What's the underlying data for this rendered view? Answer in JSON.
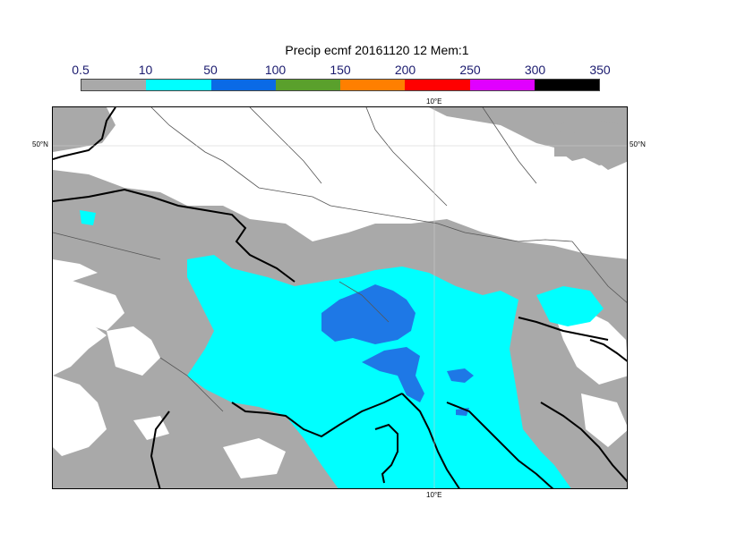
{
  "title": "Precip ecmf 20161120 12 Mem:1",
  "legend": {
    "ticks": [
      "0.5",
      "10",
      "50",
      "100",
      "150",
      "200",
      "250",
      "300",
      "350"
    ],
    "colors": [
      "#a9a9a9",
      "#00ffff",
      "#0a6ae6",
      "#5aa02c",
      "#ff7f00",
      "#ff0000",
      "#e000ff",
      "#000000"
    ]
  },
  "map": {
    "lat_label_left": "50°N",
    "lat_label_right": "50°N",
    "lon_label_top": "10°E",
    "lon_label_bottom": "10°E",
    "colors": {
      "gray": "#a9a9a9",
      "cyan": "#00ffff",
      "blue": "#1e78e6",
      "coast": "#000000",
      "border": "#555555"
    }
  }
}
